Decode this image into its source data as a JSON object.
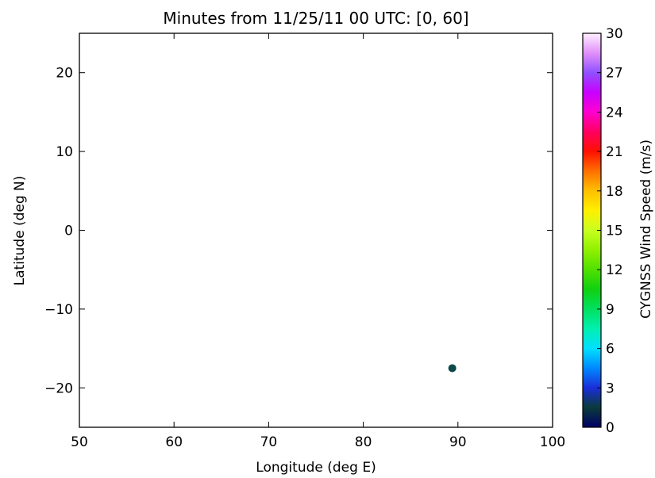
{
  "chart_data": {
    "type": "scatter",
    "title": "Minutes from 11/25/11 00 UTC: [0, 60]",
    "xlabel": "Longitude (deg E)",
    "ylabel": "Latitude (deg N)",
    "xlim": [
      50,
      100
    ],
    "ylim": [
      -25,
      25
    ],
    "x_ticks": [
      50,
      60,
      70,
      80,
      90,
      100
    ],
    "y_ticks": [
      -20,
      -10,
      0,
      10,
      20
    ],
    "grid": false,
    "points": [
      {
        "x": 89.4,
        "y": -17.5,
        "value": 1.5,
        "color": "#0d4a4a"
      }
    ],
    "colorbar": {
      "label": "CYGNSS Wind Speed (m/s)",
      "range": [
        0,
        30
      ],
      "ticks": [
        0,
        3,
        6,
        9,
        12,
        15,
        18,
        21,
        24,
        27,
        30
      ],
      "colormap": "gist_ncar",
      "stops": [
        {
          "v": 0,
          "color": "#000066"
        },
        {
          "v": 1.5,
          "color": "#0a3a3a"
        },
        {
          "v": 3,
          "color": "#1a2ed8"
        },
        {
          "v": 4.5,
          "color": "#0088ff"
        },
        {
          "v": 6,
          "color": "#00e0ff"
        },
        {
          "v": 7.5,
          "color": "#00f0b0"
        },
        {
          "v": 9,
          "color": "#00e060"
        },
        {
          "v": 10.5,
          "color": "#10d010"
        },
        {
          "v": 12,
          "color": "#50e000"
        },
        {
          "v": 13.5,
          "color": "#90f000"
        },
        {
          "v": 15,
          "color": "#c8ff20"
        },
        {
          "v": 16.5,
          "color": "#fff000"
        },
        {
          "v": 18,
          "color": "#ffc000"
        },
        {
          "v": 19.5,
          "color": "#ff7000"
        },
        {
          "v": 21,
          "color": "#ff1000"
        },
        {
          "v": 22.5,
          "color": "#ff0060"
        },
        {
          "v": 24,
          "color": "#ff00d0"
        },
        {
          "v": 25.5,
          "color": "#c800ff"
        },
        {
          "v": 27,
          "color": "#9050ff"
        },
        {
          "v": 28.5,
          "color": "#e090f8"
        },
        {
          "v": 30,
          "color": "#fff0ff"
        }
      ]
    }
  }
}
